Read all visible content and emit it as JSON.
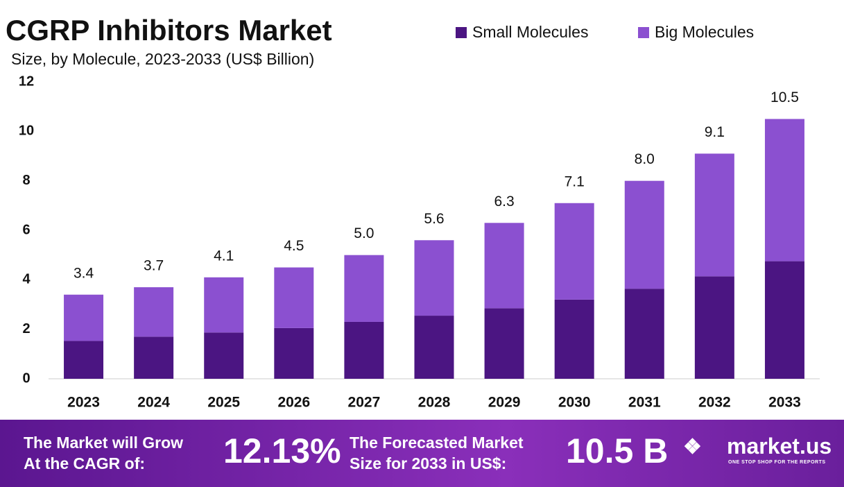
{
  "chart_data": {
    "type": "stacked-bar",
    "title": "CGRP Inhibitors Market",
    "subtitle": "Size, by Molecule, 2023-2033 (US$ Billion)",
    "categories": [
      "2023",
      "2024",
      "2025",
      "2026",
      "2027",
      "2028",
      "2029",
      "2030",
      "2031",
      "2032",
      "2033"
    ],
    "series": [
      {
        "name": "Small Molecules",
        "color": "#4b1582",
        "values": [
          1.53,
          1.7,
          1.87,
          2.05,
          2.3,
          2.55,
          2.85,
          3.2,
          3.64,
          4.14,
          4.75
        ]
      },
      {
        "name": "Big Molecules",
        "color": "#8b50d0",
        "values": [
          1.87,
          2.0,
          2.23,
          2.45,
          2.7,
          3.05,
          3.45,
          3.9,
          4.36,
          4.96,
          5.75
        ]
      }
    ],
    "totals": [
      3.4,
      3.7,
      4.1,
      4.5,
      5.0,
      5.6,
      6.3,
      7.1,
      8.0,
      9.1,
      10.5
    ],
    "total_labels": [
      "3.4",
      "3.7",
      "4.1",
      "4.5",
      "5.0",
      "5.6",
      "6.3",
      "7.1",
      "8.0",
      "9.1",
      "10.5"
    ],
    "ylim": [
      0,
      12
    ],
    "yticks": [
      0,
      2,
      4,
      6,
      8,
      10,
      12
    ],
    "grid": false,
    "legend": "top-right"
  },
  "footer": {
    "cagr_text": [
      "The Market will Grow",
      "At the CAGR of:"
    ],
    "cagr_value": "12.13%",
    "forecast_text": [
      "The Forecasted Market",
      "Size for 2033 in US$:"
    ],
    "forecast_value": "10.5 B",
    "brand": "market.us",
    "tagline": "ONE STOP SHOP FOR THE REPORTS"
  }
}
